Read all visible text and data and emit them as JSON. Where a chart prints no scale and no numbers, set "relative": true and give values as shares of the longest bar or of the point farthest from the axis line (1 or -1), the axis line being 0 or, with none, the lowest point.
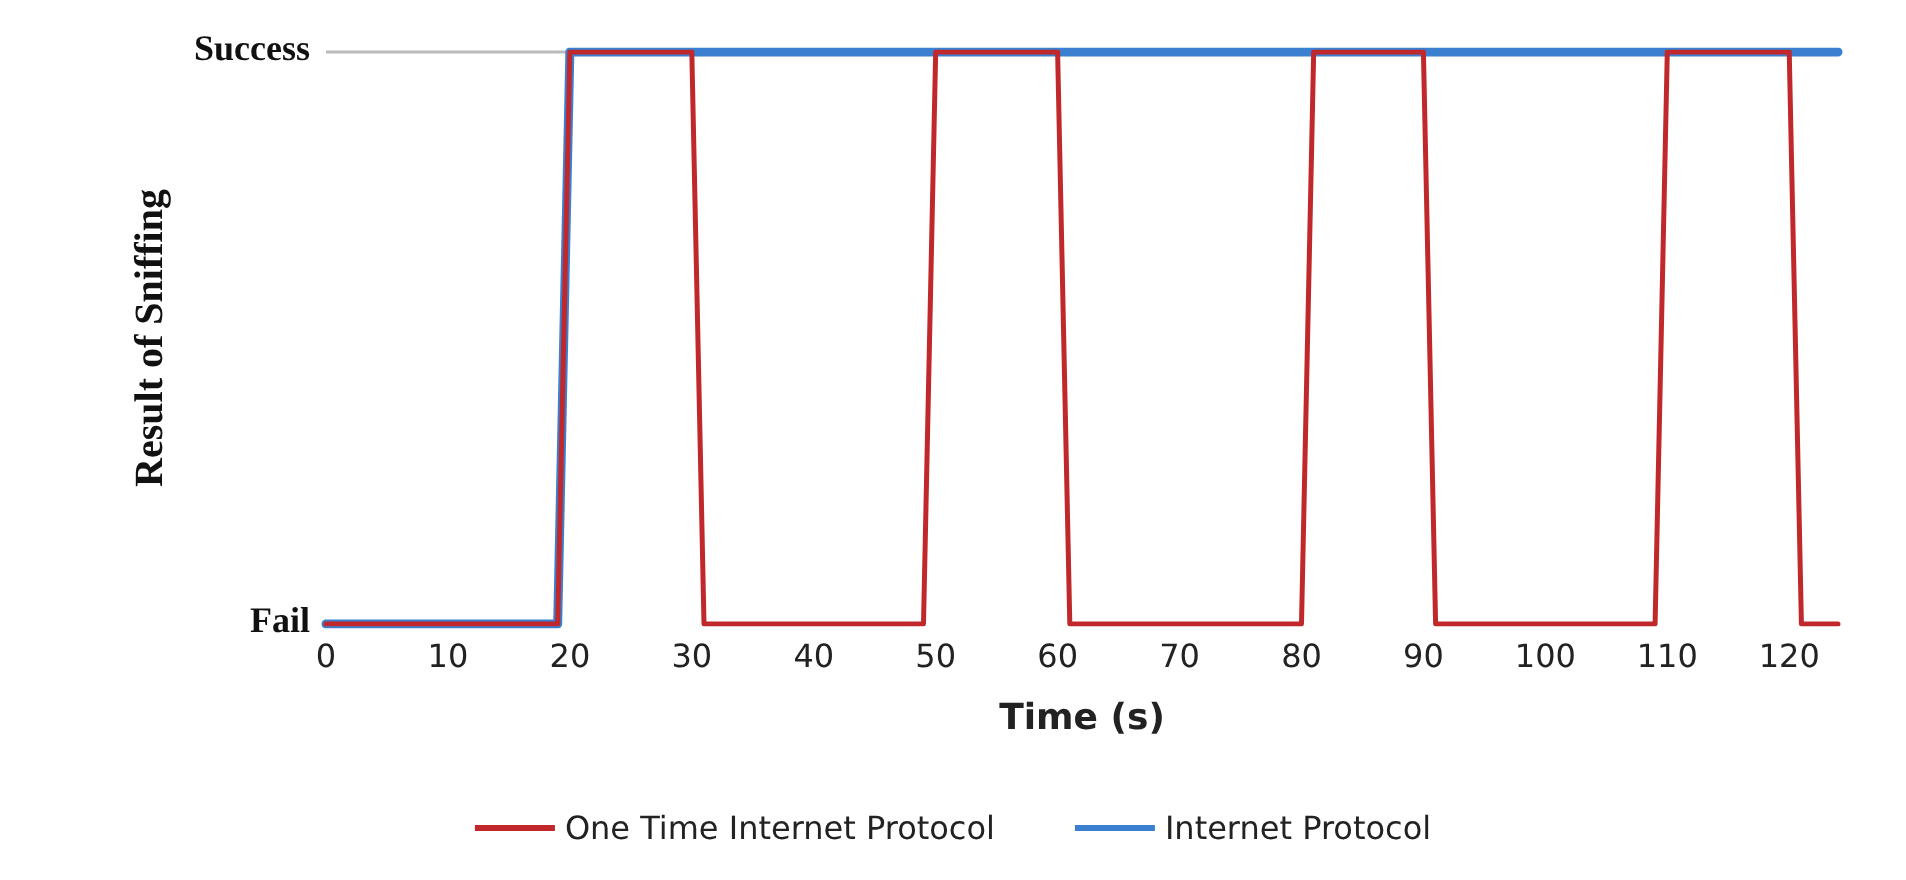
{
  "chart_data": {
    "type": "line",
    "xlabel": "Time (s)",
    "ylabel": "Result of Sniffing",
    "xlim": [
      0,
      124
    ],
    "xticks": [
      0,
      10,
      20,
      30,
      40,
      50,
      60,
      70,
      80,
      90,
      100,
      110,
      120
    ],
    "relative": true,
    "ref_lines": [
      {
        "axis": "y",
        "value": 1,
        "color": "#bbbbbb"
      }
    ],
    "annotations": [
      "Success",
      "Fail"
    ],
    "legend": "bottom",
    "marker": "none",
    "line_style": "solid",
    "series": [
      {
        "name": "One Time Internet Protocol",
        "color": "#c0282b",
        "x": [
          0,
          19,
          20,
          30,
          31,
          49,
          50,
          60,
          61,
          80,
          81,
          90,
          91,
          109,
          110,
          120,
          121,
          124
        ],
        "values": [
          0,
          0,
          1,
          1,
          0,
          0,
          1,
          1,
          0,
          0,
          1,
          1,
          0,
          0,
          1,
          1,
          0,
          0
        ]
      },
      {
        "name": "Internet Protocol",
        "color": "#3a7fd0",
        "x": [
          0,
          19,
          20,
          124
        ],
        "values": [
          0,
          0,
          1,
          1
        ]
      }
    ]
  }
}
